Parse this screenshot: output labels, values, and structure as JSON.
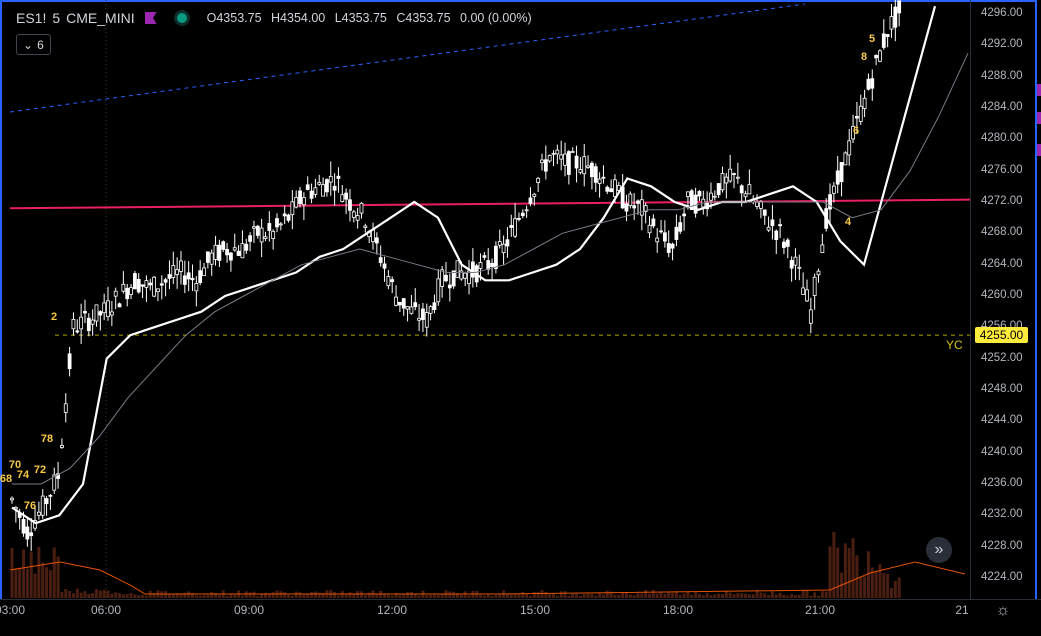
{
  "legend": {
    "symbol": "ES1!",
    "interval": "5",
    "exchange": "CME_MINI",
    "open": "O4353.75",
    "high": "H4354.00",
    "low": "L4353.75",
    "close": "C4353.75",
    "change": "0.00 (0.00%)",
    "indicators_count": "6"
  },
  "price_axis": {
    "ticks": [
      "4296.00",
      "4292.00",
      "4288.00",
      "4284.00",
      "4280.00",
      "4276.00",
      "4272.00",
      "4268.00",
      "4264.00",
      "4260.00",
      "4256.00",
      "4252.00",
      "4248.00",
      "4244.00",
      "4240.00",
      "4236.00",
      "4232.00",
      "4228.00",
      "4224.00"
    ],
    "current_price": "4255.00",
    "yc_label": "YC"
  },
  "time_axis": {
    "ticks": [
      "03:00",
      "06:00",
      "09:00",
      "12:00",
      "15:00",
      "18:00",
      "21:00",
      "21"
    ]
  },
  "colors": {
    "up": "#ffffff",
    "down": "#ffffff",
    "ema_fast": "#ffffff",
    "ema_slow": "#787b86",
    "trendline": "#e91e63",
    "dashed_channel": "#2962ff",
    "yc_line": "#b7a400",
    "volume": "#8b2e1a",
    "volume_ma": "#e65100",
    "counter": "#f7c948",
    "frame": "#2962ff"
  },
  "chart_data": {
    "type": "candlestick",
    "symbol": "ES1!",
    "interval_minutes": 5,
    "ylim": [
      4222,
      4298
    ],
    "x_ticks": [
      "03:00",
      "06:00",
      "09:00",
      "12:00",
      "15:00",
      "18:00",
      "21:00"
    ],
    "horizontal_lines": [
      {
        "label": "YC",
        "value": 4255.0,
        "style": "dashed"
      }
    ],
    "trendline_start_end": [
      4271.2,
      4272.3
    ],
    "bar_counts": [
      "5",
      "68",
      "70",
      "74",
      "72",
      "76",
      "78",
      "2",
      "4",
      "6",
      "8"
    ],
    "close_path": [
      4234,
      4230,
      4233,
      4237,
      4256,
      4257,
      4258,
      4260,
      4262,
      4261,
      4262,
      4263,
      4262,
      4265,
      4266,
      4266,
      4268,
      4268,
      4270,
      4273,
      4274,
      4275,
      4272,
      4270,
      4265,
      4260,
      4258,
      4257,
      4262,
      4263,
      4263,
      4264,
      4266,
      4270,
      4274,
      4278,
      4277,
      4277,
      4276,
      4274,
      4272,
      4271,
      4268,
      4266,
      4272,
      4272,
      4274,
      4275,
      4273,
      4270,
      4268,
      4264,
      4258,
      4270,
      4276,
      4282,
      4288,
      4294,
      4297
    ],
    "ema_fast_path": [
      4233,
      4231,
      4232,
      4236,
      4252,
      4255,
      4256,
      4257,
      4258,
      4260,
      4261,
      4262,
      4263,
      4265,
      4266,
      4268,
      4270,
      4272,
      4270,
      4264,
      4262,
      4262,
      4263,
      4264,
      4266,
      4270,
      4275,
      4274,
      4272,
      4271,
      4272,
      4272,
      4273,
      4274,
      4272,
      4267,
      4264,
      4275,
      4286,
      4297
    ],
    "ema_slow_path": [
      4236,
      4236,
      4238,
      4242,
      4247,
      4251,
      4255,
      4258,
      4260,
      4262,
      4264,
      4265,
      4266,
      4265,
      4264,
      4263,
      4263,
      4264,
      4266,
      4268,
      4269,
      4270,
      4271,
      4271,
      4272,
      4272,
      4272,
      4272,
      4272,
      4270,
      4271,
      4276,
      4283,
      4291
    ]
  }
}
